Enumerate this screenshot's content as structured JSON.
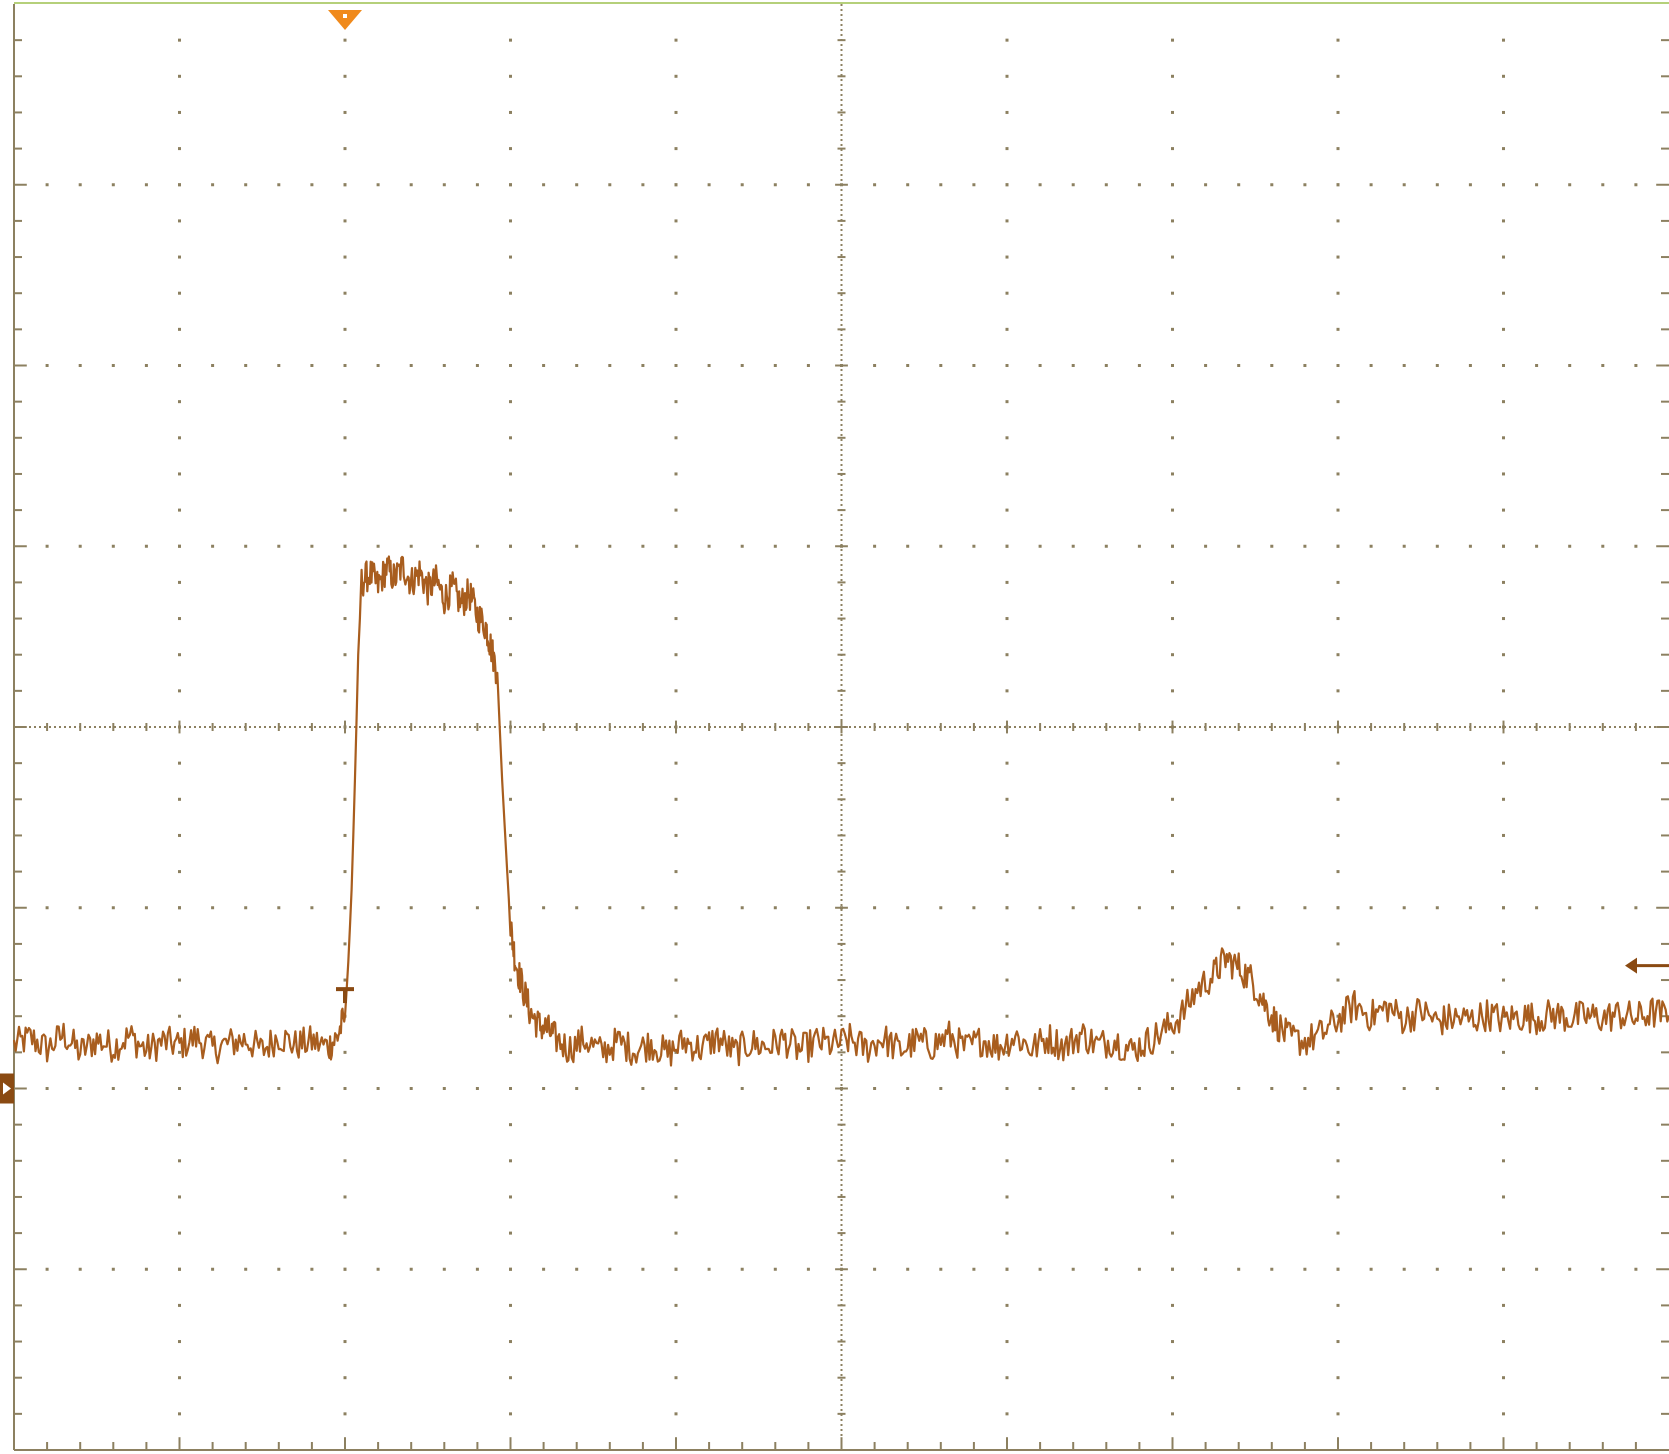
{
  "colors": {
    "background": "#ffffff",
    "graticule": "#8c8060",
    "trace": "#a85d1e",
    "trigger_marker": "#f08a1c",
    "top_border": "#b5d07a",
    "channel_marker": "#8a4a12"
  },
  "chart_data": {
    "type": "line",
    "title": "",
    "xlabel": "",
    "ylabel": "",
    "grid": true,
    "xlim": [
      -5,
      5
    ],
    "ylim": [
      -4,
      4
    ],
    "divisions": {
      "x": 10,
      "y": 8
    },
    "channel_ground_level": -2.0,
    "trigger_time": -3.0,
    "trigger_level": -1.45,
    "series": [
      {
        "values": [
          [
            -5.0,
            -1.76
          ],
          [
            -4.9,
            -1.72
          ],
          [
            -4.8,
            -1.78
          ],
          [
            -4.7,
            -1.7
          ],
          [
            -4.6,
            -1.8
          ],
          [
            -4.5,
            -1.73
          ],
          [
            -4.4,
            -1.77
          ],
          [
            -4.3,
            -1.71
          ],
          [
            -4.2,
            -1.79
          ],
          [
            -4.1,
            -1.74
          ],
          [
            -4.0,
            -1.76
          ],
          [
            -3.9,
            -1.72
          ],
          [
            -3.8,
            -1.78
          ],
          [
            -3.7,
            -1.75
          ],
          [
            -3.6,
            -1.73
          ],
          [
            -3.5,
            -1.79
          ],
          [
            -3.4,
            -1.71
          ],
          [
            -3.3,
            -1.76
          ],
          [
            -3.2,
            -1.74
          ],
          [
            -3.1,
            -1.77
          ],
          [
            -3.05,
            -1.72
          ],
          [
            -3.0,
            -1.6
          ],
          [
            -2.98,
            -1.3
          ],
          [
            -2.96,
            -0.9
          ],
          [
            -2.94,
            -0.3
          ],
          [
            -2.92,
            0.4
          ],
          [
            -2.9,
            0.8
          ],
          [
            -2.85,
            0.85
          ],
          [
            -2.8,
            0.78
          ],
          [
            -2.75,
            0.88
          ],
          [
            -2.7,
            0.82
          ],
          [
            -2.65,
            0.89
          ],
          [
            -2.6,
            0.8
          ],
          [
            -2.55,
            0.86
          ],
          [
            -2.5,
            0.76
          ],
          [
            -2.45,
            0.81
          ],
          [
            -2.4,
            0.71
          ],
          [
            -2.35,
            0.77
          ],
          [
            -2.3,
            0.68
          ],
          [
            -2.25,
            0.74
          ],
          [
            -2.2,
            0.62
          ],
          [
            -2.15,
            0.56
          ],
          [
            -2.12,
            0.45
          ],
          [
            -2.08,
            0.3
          ],
          [
            -2.05,
            -0.3
          ],
          [
            -2.02,
            -0.8
          ],
          [
            -2.0,
            -1.1
          ],
          [
            -1.97,
            -1.3
          ],
          [
            -1.93,
            -1.43
          ],
          [
            -1.88,
            -1.58
          ],
          [
            -1.83,
            -1.65
          ],
          [
            -1.78,
            -1.67
          ],
          [
            -1.73,
            -1.72
          ],
          [
            -1.65,
            -1.78
          ],
          [
            -1.55,
            -1.73
          ],
          [
            -1.45,
            -1.8
          ],
          [
            -1.35,
            -1.74
          ],
          [
            -1.25,
            -1.79
          ],
          [
            -1.15,
            -1.75
          ],
          [
            -1.05,
            -1.81
          ],
          [
            -0.95,
            -1.74
          ],
          [
            -0.85,
            -1.78
          ],
          [
            -0.75,
            -1.72
          ],
          [
            -0.65,
            -1.8
          ],
          [
            -0.55,
            -1.75
          ],
          [
            -0.45,
            -1.77
          ],
          [
            -0.35,
            -1.73
          ],
          [
            -0.25,
            -1.79
          ],
          [
            -0.15,
            -1.74
          ],
          [
            -0.05,
            -1.76
          ],
          [
            0.05,
            -1.73
          ],
          [
            0.15,
            -1.78
          ],
          [
            0.25,
            -1.72
          ],
          [
            0.35,
            -1.79
          ],
          [
            0.45,
            -1.74
          ],
          [
            0.55,
            -1.76
          ],
          [
            0.65,
            -1.71
          ],
          [
            0.75,
            -1.78
          ],
          [
            0.85,
            -1.73
          ],
          [
            0.95,
            -1.77
          ],
          [
            1.05,
            -1.71
          ],
          [
            1.15,
            -1.78
          ],
          [
            1.25,
            -1.72
          ],
          [
            1.35,
            -1.77
          ],
          [
            1.45,
            -1.7
          ],
          [
            1.55,
            -1.76
          ],
          [
            1.65,
            -1.73
          ],
          [
            1.75,
            -1.79
          ],
          [
            1.85,
            -1.74
          ],
          [
            1.95,
            -1.68
          ],
          [
            2.05,
            -1.6
          ],
          [
            2.15,
            -1.45
          ],
          [
            2.25,
            -1.37
          ],
          [
            2.32,
            -1.28
          ],
          [
            2.4,
            -1.33
          ],
          [
            2.48,
            -1.4
          ],
          [
            2.55,
            -1.52
          ],
          [
            2.62,
            -1.63
          ],
          [
            2.7,
            -1.72
          ],
          [
            2.8,
            -1.74
          ],
          [
            2.9,
            -1.7
          ],
          [
            3.0,
            -1.62
          ],
          [
            3.1,
            -1.54
          ],
          [
            3.2,
            -1.6
          ],
          [
            3.3,
            -1.55
          ],
          [
            3.4,
            -1.62
          ],
          [
            3.5,
            -1.57
          ],
          [
            3.6,
            -1.63
          ],
          [
            3.7,
            -1.61
          ],
          [
            3.8,
            -1.62
          ],
          [
            3.9,
            -1.59
          ],
          [
            4.0,
            -1.62
          ],
          [
            4.1,
            -1.6
          ],
          [
            4.2,
            -1.61
          ],
          [
            4.3,
            -1.59
          ],
          [
            4.4,
            -1.61
          ],
          [
            4.5,
            -1.6
          ],
          [
            4.6,
            -1.61
          ],
          [
            4.7,
            -1.59
          ],
          [
            4.8,
            -1.61
          ],
          [
            4.9,
            -1.58
          ],
          [
            5.0,
            -1.6
          ]
        ]
      }
    ]
  }
}
